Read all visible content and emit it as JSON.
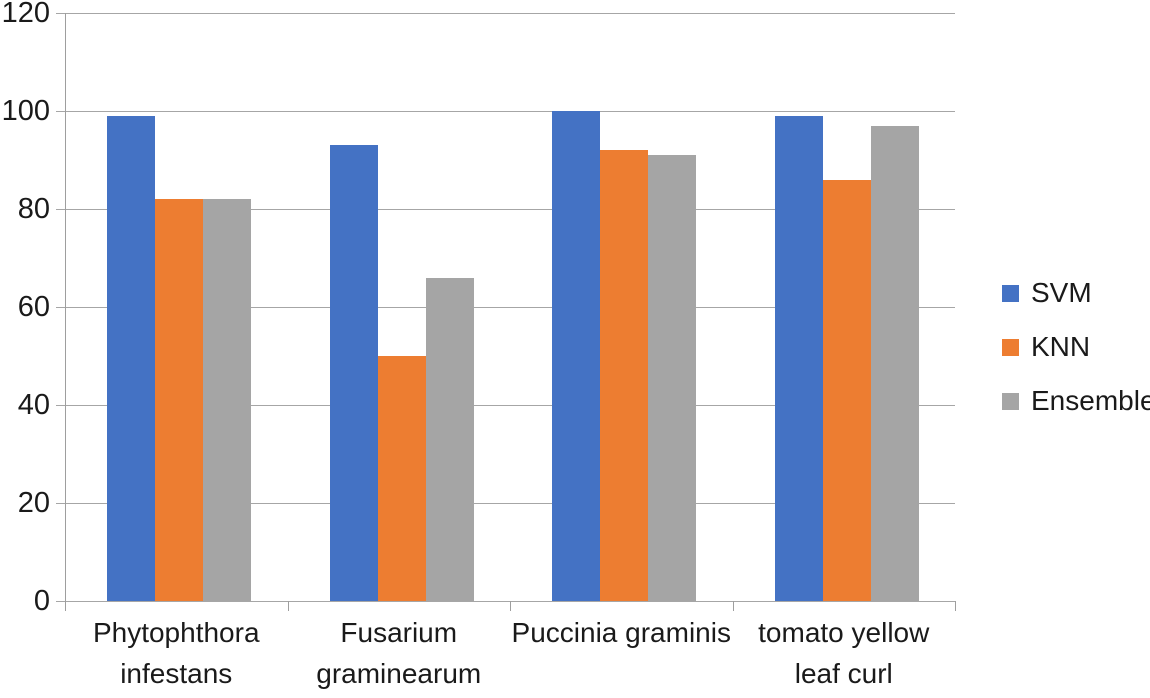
{
  "chart_data": {
    "type": "bar",
    "title": "",
    "xlabel": "",
    "ylabel": "",
    "categories": [
      "Phytophthora infestans",
      "Fusarium graminearum",
      "Puccinia graminis",
      "tomato yellow leaf curl"
    ],
    "category_label_lines": [
      [
        "Phytophthora",
        "infestans"
      ],
      [
        "Fusarium",
        "graminearum"
      ],
      [
        "Puccinia graminis"
      ],
      [
        "tomato yellow",
        "leaf curl"
      ]
    ],
    "series": [
      {
        "name": "SVM",
        "color": "#4472C4",
        "values": [
          99,
          93,
          100,
          99
        ]
      },
      {
        "name": "KNN",
        "color": "#ED7D31",
        "values": [
          82,
          50,
          92,
          86
        ]
      },
      {
        "name": "Ensemble",
        "color": "#A5A5A5",
        "values": [
          82,
          66,
          91,
          97
        ]
      }
    ],
    "ylim": [
      0,
      120
    ],
    "yticks": [
      0,
      20,
      40,
      60,
      80,
      100,
      120
    ],
    "grid": true,
    "legend_position": "right"
  },
  "colors": {
    "grid": "#A6A6A6",
    "axis": "#9E9E9E",
    "text": "#1A1A1A",
    "background": "#FFFFFF"
  }
}
